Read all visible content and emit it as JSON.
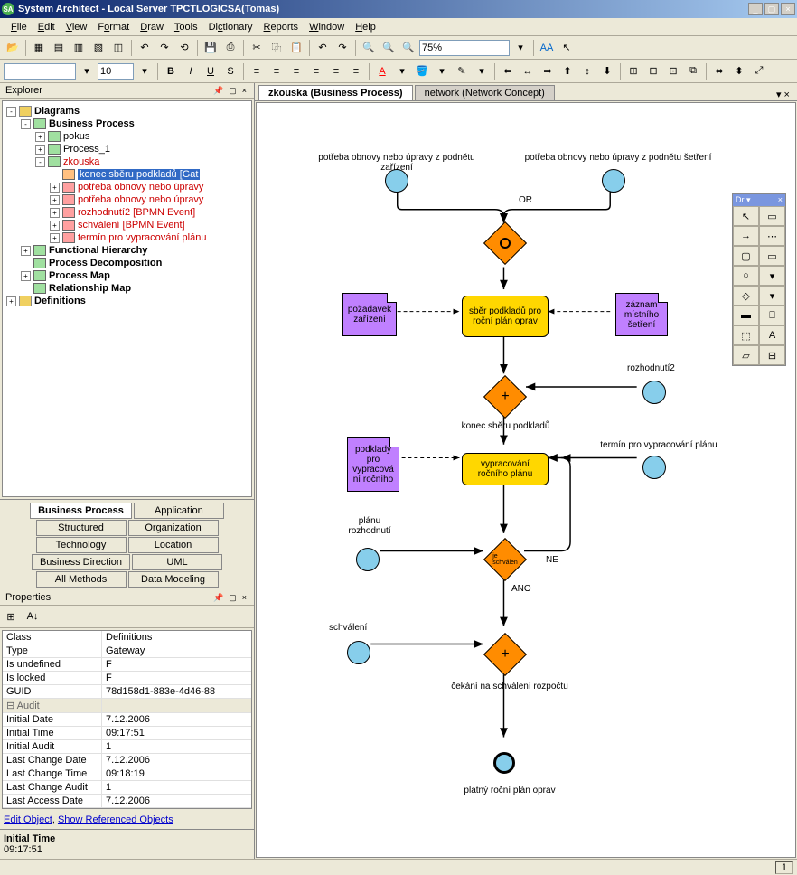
{
  "window": {
    "title": "System Architect - Local Server TPCTLOGICSA(Tomas)",
    "icon_label": "SA"
  },
  "menu": [
    "File",
    "Edit",
    "View",
    "Format",
    "Draw",
    "Tools",
    "Dictionary",
    "Reports",
    "Window",
    "Help"
  ],
  "toolbar": {
    "zoom_value": "75%",
    "font_value": "",
    "size_value": "10"
  },
  "explorer": {
    "title": "Explorer",
    "items": [
      {
        "lvl": 0,
        "exp": "-",
        "icon": "folder",
        "label": "Diagrams",
        "bold": true
      },
      {
        "lvl": 1,
        "exp": "-",
        "icon": "diag",
        "label": "Business Process",
        "bold": true
      },
      {
        "lvl": 2,
        "exp": "+",
        "icon": "diag",
        "label": "pokus"
      },
      {
        "lvl": 2,
        "exp": "+",
        "icon": "diag",
        "label": "Process_1"
      },
      {
        "lvl": 2,
        "exp": "-",
        "icon": "diag",
        "label": "zkouska",
        "red": true
      },
      {
        "lvl": 3,
        "exp": "",
        "icon": "sel",
        "label": "konec sběru podkladů  [Gat",
        "selected": true
      },
      {
        "lvl": 3,
        "exp": "+",
        "icon": "item",
        "label": "potřeba obnovy nebo úpravy",
        "red": true
      },
      {
        "lvl": 3,
        "exp": "+",
        "icon": "item",
        "label": "potřeba obnovy nebo úpravy",
        "red": true
      },
      {
        "lvl": 3,
        "exp": "+",
        "icon": "item",
        "label": "rozhodnutí2  [BPMN Event]",
        "red": true
      },
      {
        "lvl": 3,
        "exp": "+",
        "icon": "item",
        "label": "schválení  [BPMN Event]",
        "red": true
      },
      {
        "lvl": 3,
        "exp": "+",
        "icon": "item",
        "label": "termín pro vypracování plánu",
        "red": true
      },
      {
        "lvl": 1,
        "exp": "+",
        "icon": "diag",
        "label": "Functional Hierarchy",
        "bold": true
      },
      {
        "lvl": 1,
        "exp": "",
        "icon": "diag",
        "label": "Process Decomposition",
        "bold": true
      },
      {
        "lvl": 1,
        "exp": "+",
        "icon": "diag",
        "label": "Process Map",
        "bold": true
      },
      {
        "lvl": 1,
        "exp": "",
        "icon": "diag",
        "label": "Relationship Map",
        "bold": true
      },
      {
        "lvl": 0,
        "exp": "+",
        "icon": "folder",
        "label": "Definitions",
        "bold": true
      }
    ],
    "tabs": [
      [
        "Business Process",
        "Application"
      ],
      [
        "Structured",
        "Organization"
      ],
      [
        "Technology",
        "Location"
      ],
      [
        "Business Direction",
        "UML"
      ],
      [
        "All Methods",
        "Data Modeling"
      ]
    ],
    "active_tab": "Business Process"
  },
  "properties": {
    "title": "Properties",
    "rows": [
      {
        "k": "Class",
        "v": "Definitions"
      },
      {
        "k": "Type",
        "v": "Gateway"
      },
      {
        "k": "Is undefined",
        "v": "F"
      },
      {
        "k": "Is locked",
        "v": "F"
      },
      {
        "k": "GUID",
        "v": "78d158d1-883e-4d46-88"
      }
    ],
    "audit_label": "Audit",
    "audit_rows": [
      {
        "k": "Initial Date",
        "v": "7.12.2006"
      },
      {
        "k": "Initial Time",
        "v": "09:17:51"
      },
      {
        "k": "Initial Audit",
        "v": "1"
      },
      {
        "k": "Last Change Date",
        "v": "7.12.2006"
      },
      {
        "k": "Last Change Time",
        "v": "09:18:19"
      },
      {
        "k": "Last Change Audit",
        "v": "1"
      },
      {
        "k": "Last Access Date",
        "v": "7.12.2006"
      }
    ],
    "links": [
      "Edit Object",
      "Show Referenced Objects"
    ],
    "footer_label": "Initial Time",
    "footer_value": "09:17:51"
  },
  "canvas": {
    "tabs": [
      {
        "label": "zkouska (Business Process)",
        "active": true
      },
      {
        "label": "network (Network Concept)",
        "active": false
      }
    ],
    "palette_title": "Dr ▾",
    "flowchart": {
      "background": "#ffffff",
      "colors": {
        "event": "#87ceeb",
        "gateway": "#ff8c00",
        "task": "#ffd700",
        "note": "#c080ff",
        "line": "#000000"
      },
      "texts": {
        "start1": "potřeba obnovy nebo úpravy z podnětu zařízení",
        "start2": "potřeba obnovy nebo úpravy z podnětu šetření",
        "or": "OR",
        "task1": "sběr podkladů pro roční plán oprav",
        "note1": "požadavek zařízení",
        "note2": "záznam místního šetření",
        "rozh2": "rozhodnutí2",
        "konec": "konec sběru podkladů",
        "termin": "termín pro vypracování plánu",
        "task2": "vypracování ročního plánu",
        "note3": "podklady pro vypracová ní ročního",
        "planu": "plánu rozhodnutí",
        "schvalen": "je schválen",
        "ne": "NE",
        "ano": "ANO",
        "schvaleni": "schválení",
        "cekani": "čekání na schválení rozpočtu",
        "platny": "platný roční plán oprav"
      }
    }
  },
  "statusbar": {
    "page": "1"
  }
}
